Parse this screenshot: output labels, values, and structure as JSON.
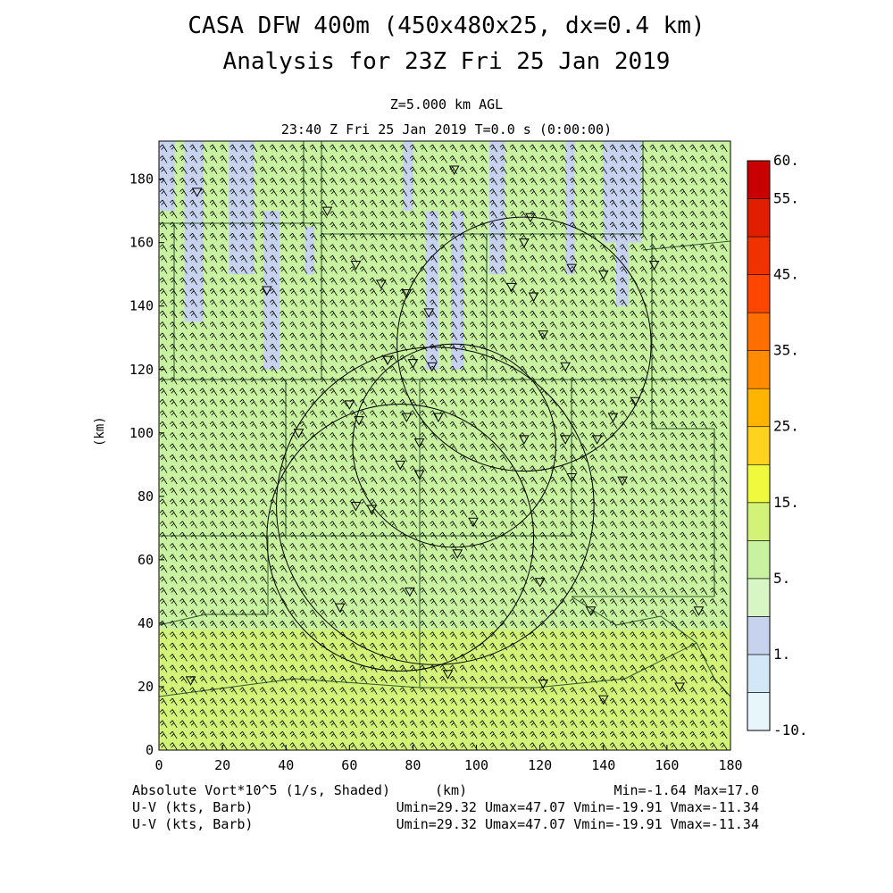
{
  "header": {
    "title_line1": "CASA DFW 400m (450x480x25, dx=0.4 km)",
    "title_line2": "Analysis for 23Z Fri 25 Jan 2019",
    "level": "Z=5.000 km AGL",
    "time": "23:40 Z Fri 25 Jan 2019    T=0.0 s (0:00:00)"
  },
  "footer": {
    "field_label": "Absolute Vort*10^5 (1/s, Shaded)",
    "x_unit": "(km)",
    "minmax": "Min=-1.64 Max=17.0",
    "barb1_label": "U-V (kts, Barb)",
    "barb1_stats": "Umin=29.32 Umax=47.07 Vmin=-19.91 Vmax=-11.34",
    "barb2_label": "U-V (kts, Barb)",
    "barb2_stats": "Umin=29.32 Umax=47.07 Vmin=-19.91 Vmax=-11.34"
  },
  "chart_data": {
    "type": "heatmap",
    "title": "CASA DFW 400m (450x480x25, dx=0.4 km)",
    "subtitle": "Analysis for 23Z Fri 25 Jan 2019",
    "xlabel": "(km)",
    "ylabel": "(km)",
    "xlim": [
      0,
      180
    ],
    "ylim": [
      0,
      192
    ],
    "x_ticks": [
      0,
      20,
      40,
      60,
      80,
      100,
      120,
      140,
      160,
      180
    ],
    "y_ticks": [
      0,
      20,
      40,
      60,
      80,
      100,
      120,
      140,
      160,
      180
    ],
    "field": "Absolute Vort*10^5 (1/s, Shaded)",
    "field_min": -1.64,
    "field_max": 17.0,
    "colorbar": {
      "tick_labels": [
        "-10.",
        "1.",
        "5.",
        "15.",
        "25.",
        "35.",
        "45.",
        "55.",
        "60."
      ],
      "bins": [
        {
          "color": "#e6f6fb"
        },
        {
          "color": "#d2e8f6"
        },
        {
          "color": "#c7d3ee"
        },
        {
          "color": "#d8f6c4"
        },
        {
          "color": "#c8f2a0"
        },
        {
          "color": "#d2f378"
        },
        {
          "color": "#f0fa3c"
        },
        {
          "color": "#ffd21e"
        },
        {
          "color": "#ffb400"
        },
        {
          "color": "#ff8c00"
        },
        {
          "color": "#ff6e00"
        },
        {
          "color": "#ff4600"
        },
        {
          "color": "#f03200"
        },
        {
          "color": "#e11e00"
        },
        {
          "color": "#c80000"
        }
      ]
    },
    "regions": [
      {
        "shade": "light-green",
        "color": "#c8f2a0",
        "x": [
          0,
          180
        ],
        "y": [
          38,
          192
        ]
      },
      {
        "shade": "yellow-green",
        "color": "#d2f378",
        "x": [
          0,
          180
        ],
        "y": [
          0,
          38
        ]
      },
      {
        "shade": "pale-blue",
        "color": "#c7d3ee",
        "x": [
          0,
          5
        ],
        "y": [
          170,
          192
        ]
      },
      {
        "shade": "pale-blue",
        "color": "#c7d3ee",
        "x": [
          8,
          14
        ],
        "y": [
          135,
          192
        ]
      },
      {
        "shade": "pale-blue",
        "color": "#c7d3ee",
        "x": [
          22,
          30
        ],
        "y": [
          150,
          192
        ]
      },
      {
        "shade": "pale-blue",
        "color": "#c7d3ee",
        "x": [
          33,
          38
        ],
        "y": [
          120,
          170
        ]
      },
      {
        "shade": "pale-blue",
        "color": "#c7d3ee",
        "x": [
          46,
          49
        ],
        "y": [
          150,
          165
        ]
      },
      {
        "shade": "pale-blue",
        "color": "#c7d3ee",
        "x": [
          77,
          80
        ],
        "y": [
          170,
          192
        ]
      },
      {
        "shade": "pale-blue",
        "color": "#c7d3ee",
        "x": [
          84,
          88
        ],
        "y": [
          120,
          170
        ]
      },
      {
        "shade": "pale-blue",
        "color": "#c7d3ee",
        "x": [
          92,
          96
        ],
        "y": [
          120,
          170
        ]
      },
      {
        "shade": "pale-blue",
        "color": "#c7d3ee",
        "x": [
          104,
          109
        ],
        "y": [
          150,
          192
        ]
      },
      {
        "shade": "pale-blue",
        "color": "#c7d3ee",
        "x": [
          128,
          131
        ],
        "y": [
          150,
          192
        ]
      },
      {
        "shade": "pale-blue",
        "color": "#c7d3ee",
        "x": [
          140,
          152
        ],
        "y": [
          160,
          192
        ]
      },
      {
        "shade": "pale-blue",
        "color": "#c7d3ee",
        "x": [
          144,
          148
        ],
        "y": [
          140,
          160
        ]
      }
    ],
    "range_rings": [
      {
        "cx": 76,
        "cy": 67,
        "r": 42
      },
      {
        "cx": 93,
        "cy": 96,
        "r": 32
      },
      {
        "cx": 115,
        "cy": 128,
        "r": 40
      },
      {
        "cx": 87,
        "cy": 77,
        "r": 50
      }
    ],
    "wind_barbs": {
      "u_min": 29.32,
      "u_max": 47.07,
      "v_min": -19.91,
      "v_max": -11.34,
      "units": "kts"
    }
  }
}
